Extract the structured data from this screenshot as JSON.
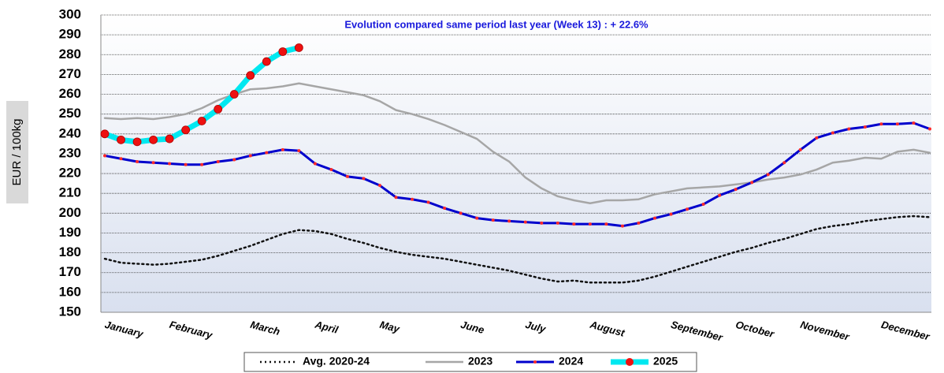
{
  "chart_data": {
    "type": "line",
    "annotation": "Evolution compared same period last year (Week 13) : + 22.6%",
    "y_label": "EUR / 100kg",
    "categories": [
      "January",
      null,
      null,
      null,
      "February",
      null,
      null,
      null,
      null,
      "March",
      null,
      null,
      null,
      "April",
      null,
      null,
      null,
      "May",
      null,
      null,
      null,
      null,
      "June",
      null,
      null,
      null,
      "July",
      null,
      null,
      null,
      "August",
      null,
      null,
      null,
      null,
      "September",
      null,
      null,
      null,
      "October",
      null,
      null,
      null,
      "November",
      null,
      null,
      null,
      null,
      "December",
      null,
      null,
      null
    ],
    "ylim": [
      150,
      300
    ],
    "yticks": [
      150,
      160,
      170,
      180,
      190,
      200,
      210,
      220,
      230,
      240,
      250,
      260,
      270,
      280,
      290,
      300
    ],
    "grid": true,
    "legend": "bottom",
    "series": [
      {
        "name": "Avg. 2020-24",
        "color": "#111111",
        "dash": "dotted",
        "width": 2.5,
        "values": [
          177,
          175,
          174.5,
          174,
          174.5,
          175.5,
          176.5,
          178.5,
          181,
          183.5,
          186.5,
          189.5,
          191.5,
          191,
          189.5,
          187,
          185,
          182.5,
          180.5,
          179,
          178,
          177,
          175.5,
          174,
          172.5,
          171,
          169,
          167,
          165.5,
          166,
          165,
          165,
          165,
          166,
          168,
          170.5,
          173,
          175.5,
          178,
          180.5,
          182.5,
          185,
          187,
          189.5,
          192,
          193.5,
          194.5,
          196,
          197,
          198,
          198.5,
          198
        ]
      },
      {
        "name": "2023",
        "color": "#a6a6a6",
        "width": 2.5,
        "values": [
          248,
          247.5,
          248,
          247.5,
          248.5,
          250,
          253,
          257,
          260,
          262.5,
          263,
          264,
          265.5,
          264,
          262.5,
          261,
          259.5,
          256.5,
          252,
          250,
          247.5,
          244.5,
          241,
          237.5,
          231,
          226,
          218,
          212.5,
          208.5,
          206.5,
          205,
          206.5,
          206.5,
          207,
          209.5,
          211,
          212.5,
          213,
          213.5,
          214.5,
          215.5,
          217,
          218,
          219.5,
          222,
          225.5,
          226.5,
          228,
          227.5,
          231,
          232,
          230.5
        ]
      },
      {
        "name": "2024",
        "color": "#0000cc",
        "width": 3,
        "marker_color": "#ff2a2a",
        "marker_size": 2,
        "values": [
          229,
          227.5,
          226,
          225.5,
          225,
          224.5,
          224.5,
          226,
          227,
          229,
          230.5,
          232,
          231.5,
          225,
          222,
          218.5,
          217.5,
          214,
          208,
          207,
          205.5,
          202.5,
          200,
          197.5,
          196.5,
          196,
          195.5,
          195,
          195,
          194.5,
          194.5,
          194.5,
          193.5,
          195,
          197.5,
          199.5,
          202,
          204.5,
          209,
          212,
          215.5,
          219.5,
          225.5,
          232,
          238,
          240.5,
          242.5,
          243.5,
          245,
          245,
          245.5,
          242.5
        ]
      },
      {
        "name": "2025",
        "color": "#00e8f0",
        "width": 7,
        "marker_color": "#ee1111",
        "marker_size": 5,
        "values": [
          240,
          237,
          236,
          237,
          237.5,
          242,
          246.5,
          252.5,
          260,
          269.5,
          276.5,
          281.5,
          283.5,
          null,
          null,
          null,
          null,
          null,
          null,
          null,
          null,
          null,
          null,
          null,
          null,
          null,
          null,
          null,
          null,
          null,
          null,
          null,
          null,
          null,
          null,
          null,
          null,
          null,
          null,
          null,
          null,
          null,
          null,
          null,
          null,
          null,
          null,
          null,
          null,
          null,
          null,
          null
        ]
      }
    ]
  }
}
